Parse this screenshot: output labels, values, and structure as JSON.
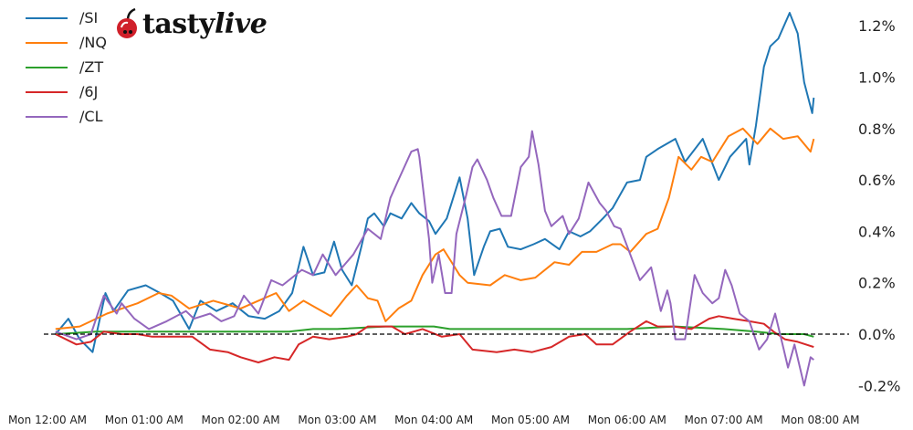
{
  "logo": {
    "text_plain": "tasty",
    "text_italic": "live",
    "cherry_color": "#d0202a"
  },
  "chart_data": {
    "type": "line",
    "title": "",
    "xlabel": "",
    "ylabel": "",
    "grid": false,
    "legend_position": "top-left",
    "y_format": "percent",
    "ylim": [
      -0.24,
      1.3
    ],
    "xlim": [
      "00:00",
      "08:10"
    ],
    "zero_line": {
      "value": 0,
      "style": "dashed",
      "color": "#000000"
    },
    "y_ticks": [
      {
        "value": -0.2,
        "label": "-0.2%"
      },
      {
        "value": 0.0,
        "label": "0.0%"
      },
      {
        "value": 0.2,
        "label": "0.2%"
      },
      {
        "value": 0.4,
        "label": "0.4%"
      },
      {
        "value": 0.6,
        "label": "0.6%"
      },
      {
        "value": 0.8,
        "label": "0.8%"
      },
      {
        "value": 1.0,
        "label": "1.0%"
      },
      {
        "value": 1.2,
        "label": "1.2%"
      }
    ],
    "x_ticks": [
      {
        "value": "00:00",
        "label": "Mon 12:00 AM"
      },
      {
        "value": "01:00",
        "label": "Mon 01:00 AM"
      },
      {
        "value": "02:00",
        "label": "Mon 02:00 AM"
      },
      {
        "value": "03:00",
        "label": "Mon 03:00 AM"
      },
      {
        "value": "04:00",
        "label": "Mon 04:00 AM"
      },
      {
        "value": "05:00",
        "label": "Mon 05:00 AM"
      },
      {
        "value": "06:00",
        "label": "Mon 06:00 AM"
      },
      {
        "value": "07:00",
        "label": "Mon 07:00 AM"
      },
      {
        "value": "08:00",
        "label": "Mon 08:00 AM"
      }
    ],
    "series": [
      {
        "name": "/SI",
        "color": "#1f77b4",
        "points": [
          [
            "00:05",
            0.0
          ],
          [
            "00:13",
            0.06
          ],
          [
            "00:20",
            -0.02
          ],
          [
            "00:28",
            -0.07
          ],
          [
            "00:36",
            0.16
          ],
          [
            "00:41",
            0.09
          ],
          [
            "00:50",
            0.17
          ],
          [
            "01:01",
            0.19
          ],
          [
            "01:10",
            0.16
          ],
          [
            "01:18",
            0.13
          ],
          [
            "01:28",
            0.02
          ],
          [
            "01:35",
            0.13
          ],
          [
            "01:45",
            0.09
          ],
          [
            "01:55",
            0.12
          ],
          [
            "02:05",
            0.07
          ],
          [
            "02:15",
            0.06
          ],
          [
            "02:24",
            0.09
          ],
          [
            "02:32",
            0.16
          ],
          [
            "02:39",
            0.34
          ],
          [
            "02:45",
            0.23
          ],
          [
            "02:52",
            0.24
          ],
          [
            "02:58",
            0.36
          ],
          [
            "03:03",
            0.25
          ],
          [
            "03:09",
            0.19
          ],
          [
            "03:15",
            0.34
          ],
          [
            "03:19",
            0.45
          ],
          [
            "03:23",
            0.47
          ],
          [
            "03:29",
            0.42
          ],
          [
            "03:33",
            0.47
          ],
          [
            "03:40",
            0.45
          ],
          [
            "03:46",
            0.51
          ],
          [
            "03:51",
            0.47
          ],
          [
            "03:57",
            0.44
          ],
          [
            "04:01",
            0.39
          ],
          [
            "04:08",
            0.45
          ],
          [
            "04:16",
            0.61
          ],
          [
            "04:21",
            0.45
          ],
          [
            "04:25",
            0.23
          ],
          [
            "04:31",
            0.34
          ],
          [
            "04:35",
            0.4
          ],
          [
            "04:41",
            0.41
          ],
          [
            "04:46",
            0.34
          ],
          [
            "04:54",
            0.33
          ],
          [
            "05:02",
            0.35
          ],
          [
            "05:09",
            0.37
          ],
          [
            "05:18",
            0.33
          ],
          [
            "05:24",
            0.4
          ],
          [
            "05:31",
            0.38
          ],
          [
            "05:37",
            0.4
          ],
          [
            "05:45",
            0.45
          ],
          [
            "05:51",
            0.49
          ],
          [
            "06:00",
            0.59
          ],
          [
            "06:08",
            0.6
          ],
          [
            "06:12",
            0.69
          ],
          [
            "06:19",
            0.72
          ],
          [
            "06:30",
            0.76
          ],
          [
            "06:36",
            0.67
          ],
          [
            "06:47",
            0.76
          ],
          [
            "06:57",
            0.6
          ],
          [
            "07:04",
            0.69
          ],
          [
            "07:14",
            0.76
          ],
          [
            "07:16",
            0.66
          ],
          [
            "07:20",
            0.81
          ],
          [
            "07:25",
            1.04
          ],
          [
            "07:29",
            1.12
          ],
          [
            "07:34",
            1.15
          ],
          [
            "07:41",
            1.25
          ],
          [
            "07:46",
            1.17
          ],
          [
            "07:50",
            0.98
          ],
          [
            "07:55",
            0.86
          ],
          [
            "07:56",
            0.92
          ]
        ]
      },
      {
        "name": "/NQ",
        "color": "#ff7f0e",
        "points": [
          [
            "00:05",
            0.02
          ],
          [
            "00:20",
            0.03
          ],
          [
            "00:37",
            0.08
          ],
          [
            "00:56",
            0.12
          ],
          [
            "01:09",
            0.16
          ],
          [
            "01:17",
            0.15
          ],
          [
            "01:28",
            0.1
          ],
          [
            "01:43",
            0.13
          ],
          [
            "02:00",
            0.1
          ],
          [
            "02:11",
            0.13
          ],
          [
            "02:22",
            0.16
          ],
          [
            "02:30",
            0.09
          ],
          [
            "02:39",
            0.13
          ],
          [
            "02:56",
            0.07
          ],
          [
            "03:06",
            0.15
          ],
          [
            "03:12",
            0.19
          ],
          [
            "03:19",
            0.14
          ],
          [
            "03:25",
            0.13
          ],
          [
            "03:30",
            0.05
          ],
          [
            "03:38",
            0.1
          ],
          [
            "03:46",
            0.13
          ],
          [
            "03:53",
            0.23
          ],
          [
            "04:01",
            0.31
          ],
          [
            "04:06",
            0.33
          ],
          [
            "04:12",
            0.27
          ],
          [
            "04:16",
            0.23
          ],
          [
            "04:21",
            0.2
          ],
          [
            "04:35",
            0.19
          ],
          [
            "04:44",
            0.23
          ],
          [
            "04:54",
            0.21
          ],
          [
            "05:03",
            0.22
          ],
          [
            "05:15",
            0.28
          ],
          [
            "05:24",
            0.27
          ],
          [
            "05:32",
            0.32
          ],
          [
            "05:41",
            0.32
          ],
          [
            "05:51",
            0.35
          ],
          [
            "05:56",
            0.35
          ],
          [
            "06:02",
            0.32
          ],
          [
            "06:12",
            0.39
          ],
          [
            "06:19",
            0.41
          ],
          [
            "06:26",
            0.53
          ],
          [
            "06:32",
            0.69
          ],
          [
            "06:40",
            0.64
          ],
          [
            "06:46",
            0.69
          ],
          [
            "06:53",
            0.67
          ],
          [
            "07:03",
            0.77
          ],
          [
            "07:12",
            0.8
          ],
          [
            "07:21",
            0.74
          ],
          [
            "07:29",
            0.8
          ],
          [
            "07:37",
            0.76
          ],
          [
            "07:46",
            0.77
          ],
          [
            "07:54",
            0.71
          ],
          [
            "07:56",
            0.76
          ]
        ]
      },
      {
        "name": "/ZT",
        "color": "#2ca02c",
        "points": [
          [
            "00:05",
            0.0
          ],
          [
            "00:30",
            0.01
          ],
          [
            "01:00",
            0.01
          ],
          [
            "01:30",
            0.01
          ],
          [
            "02:00",
            0.01
          ],
          [
            "02:30",
            0.01
          ],
          [
            "02:45",
            0.02
          ],
          [
            "03:00",
            0.02
          ],
          [
            "03:30",
            0.03
          ],
          [
            "04:00",
            0.03
          ],
          [
            "04:10",
            0.02
          ],
          [
            "04:30",
            0.02
          ],
          [
            "05:00",
            0.02
          ],
          [
            "05:30",
            0.02
          ],
          [
            "06:00",
            0.02
          ],
          [
            "06:30",
            0.03
          ],
          [
            "07:00",
            0.02
          ],
          [
            "07:20",
            0.01
          ],
          [
            "07:35",
            0.0
          ],
          [
            "07:50",
            0.0
          ],
          [
            "07:56",
            -0.01
          ]
        ]
      },
      {
        "name": "/6J",
        "color": "#d62728",
        "points": [
          [
            "00:05",
            0.0
          ],
          [
            "00:18",
            -0.04
          ],
          [
            "00:27",
            -0.03
          ],
          [
            "00:35",
            0.01
          ],
          [
            "00:46",
            0.0
          ],
          [
            "00:56",
            0.0
          ],
          [
            "01:05",
            -0.01
          ],
          [
            "01:18",
            -0.01
          ],
          [
            "01:30",
            -0.01
          ],
          [
            "01:41",
            -0.06
          ],
          [
            "01:52",
            -0.07
          ],
          [
            "02:00",
            -0.09
          ],
          [
            "02:11",
            -0.11
          ],
          [
            "02:21",
            -0.09
          ],
          [
            "02:30",
            -0.1
          ],
          [
            "02:36",
            -0.04
          ],
          [
            "02:45",
            -0.01
          ],
          [
            "02:55",
            -0.02
          ],
          [
            "03:06",
            -0.01
          ],
          [
            "03:12",
            0.0
          ],
          [
            "03:19",
            0.03
          ],
          [
            "03:34",
            0.03
          ],
          [
            "03:42",
            0.0
          ],
          [
            "03:53",
            0.02
          ],
          [
            "04:05",
            -0.01
          ],
          [
            "04:16",
            0.0
          ],
          [
            "04:24",
            -0.06
          ],
          [
            "04:39",
            -0.07
          ],
          [
            "04:50",
            -0.06
          ],
          [
            "05:01",
            -0.07
          ],
          [
            "05:13",
            -0.05
          ],
          [
            "05:24",
            -0.01
          ],
          [
            "05:34",
            0.0
          ],
          [
            "05:41",
            -0.04
          ],
          [
            "05:51",
            -0.04
          ],
          [
            "06:02",
            0.01
          ],
          [
            "06:12",
            0.05
          ],
          [
            "06:19",
            0.03
          ],
          [
            "06:29",
            0.03
          ],
          [
            "06:40",
            0.02
          ],
          [
            "06:51",
            0.06
          ],
          [
            "06:57",
            0.07
          ],
          [
            "07:06",
            0.06
          ],
          [
            "07:16",
            0.05
          ],
          [
            "07:25",
            0.04
          ],
          [
            "07:31",
            0.01
          ],
          [
            "07:38",
            -0.02
          ],
          [
            "07:46",
            -0.03
          ],
          [
            "07:56",
            -0.05
          ]
        ]
      },
      {
        "name": "/CL",
        "color": "#9467bd",
        "points": [
          [
            "00:05",
            0.01
          ],
          [
            "00:18",
            -0.02
          ],
          [
            "00:27",
            0.0
          ],
          [
            "00:35",
            0.15
          ],
          [
            "00:43",
            0.08
          ],
          [
            "00:46",
            0.12
          ],
          [
            "00:54",
            0.06
          ],
          [
            "01:03",
            0.02
          ],
          [
            "01:14",
            0.05
          ],
          [
            "01:26",
            0.09
          ],
          [
            "01:31",
            0.06
          ],
          [
            "01:41",
            0.08
          ],
          [
            "01:48",
            0.05
          ],
          [
            "01:56",
            0.07
          ],
          [
            "02:02",
            0.15
          ],
          [
            "02:11",
            0.08
          ],
          [
            "02:19",
            0.21
          ],
          [
            "02:26",
            0.19
          ],
          [
            "02:30",
            0.21
          ],
          [
            "02:38",
            0.25
          ],
          [
            "02:45",
            0.23
          ],
          [
            "02:51",
            0.31
          ],
          [
            "02:59",
            0.23
          ],
          [
            "03:10",
            0.31
          ],
          [
            "03:19",
            0.41
          ],
          [
            "03:27",
            0.37
          ],
          [
            "03:33",
            0.53
          ],
          [
            "03:38",
            0.6
          ],
          [
            "03:46",
            0.71
          ],
          [
            "03:50",
            0.72
          ],
          [
            "03:51",
            0.69
          ],
          [
            "03:57",
            0.37
          ],
          [
            "03:59",
            0.2
          ],
          [
            "04:03",
            0.31
          ],
          [
            "04:07",
            0.16
          ],
          [
            "04:11",
            0.16
          ],
          [
            "04:14",
            0.39
          ],
          [
            "04:20",
            0.54
          ],
          [
            "04:24",
            0.65
          ],
          [
            "04:27",
            0.68
          ],
          [
            "04:33",
            0.6
          ],
          [
            "04:37",
            0.53
          ],
          [
            "04:42",
            0.46
          ],
          [
            "04:48",
            0.46
          ],
          [
            "04:54",
            0.65
          ],
          [
            "04:59",
            0.69
          ],
          [
            "05:01",
            0.79
          ],
          [
            "05:05",
            0.66
          ],
          [
            "05:09",
            0.48
          ],
          [
            "05:13",
            0.42
          ],
          [
            "05:20",
            0.46
          ],
          [
            "05:24",
            0.39
          ],
          [
            "05:30",
            0.45
          ],
          [
            "05:36",
            0.59
          ],
          [
            "05:43",
            0.51
          ],
          [
            "05:47",
            0.48
          ],
          [
            "05:52",
            0.42
          ],
          [
            "05:56",
            0.41
          ],
          [
            "06:02",
            0.31
          ],
          [
            "06:08",
            0.21
          ],
          [
            "06:15",
            0.26
          ],
          [
            "06:21",
            0.09
          ],
          [
            "06:25",
            0.17
          ],
          [
            "06:27",
            0.12
          ],
          [
            "06:30",
            -0.02
          ],
          [
            "06:36",
            -0.02
          ],
          [
            "06:42",
            0.23
          ],
          [
            "06:47",
            0.16
          ],
          [
            "06:53",
            0.12
          ],
          [
            "06:57",
            0.14
          ],
          [
            "07:01",
            0.25
          ],
          [
            "07:05",
            0.19
          ],
          [
            "07:10",
            0.08
          ],
          [
            "07:16",
            0.05
          ],
          [
            "07:22",
            -0.06
          ],
          [
            "07:27",
            -0.02
          ],
          [
            "07:32",
            0.08
          ],
          [
            "07:37",
            -0.05
          ],
          [
            "07:40",
            -0.13
          ],
          [
            "07:44",
            -0.04
          ],
          [
            "07:50",
            -0.2
          ],
          [
            "07:54",
            -0.09
          ],
          [
            "07:56",
            -0.1
          ]
        ]
      }
    ]
  }
}
